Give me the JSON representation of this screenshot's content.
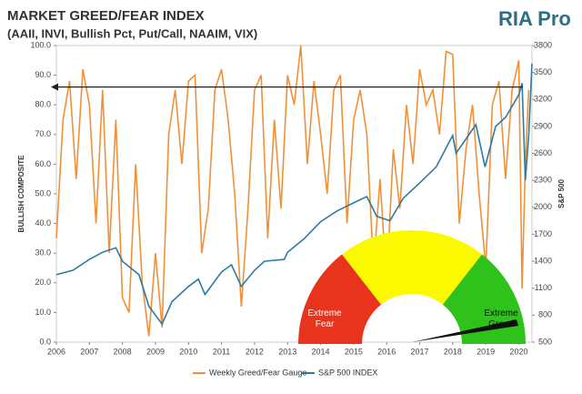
{
  "chart_data": {
    "type": "line",
    "title": "MARKET GREED/FEAR INDEX",
    "subtitle": "(AAII, INVI, Bullish Pct, Put/Call, NAAIM, VIX)",
    "logo": "RIA Pro",
    "y_label": "BULLISH COMPOSITE",
    "y2_label": "S&P 500",
    "xlim": [
      2006,
      2020.4
    ],
    "xticks": [
      2006,
      2007,
      2008,
      2009,
      2010,
      2011,
      2012,
      2013,
      2014,
      2015,
      2016,
      2017,
      2018,
      2019,
      2020
    ],
    "ylim": [
      0,
      100
    ],
    "yticks": [
      {
        "value": 0,
        "label": "0.0"
      },
      {
        "value": 10,
        "label": "10.0"
      },
      {
        "value": 20,
        "label": "20.0"
      },
      {
        "value": 30,
        "label": "30.0"
      },
      {
        "value": 40,
        "label": "40.0"
      },
      {
        "value": 50,
        "label": "50.0"
      },
      {
        "value": 60,
        "label": "60.0"
      },
      {
        "value": 70,
        "label": "70.0"
      },
      {
        "value": 80,
        "label": "80.0"
      },
      {
        "value": 90,
        "label": "90.0"
      },
      {
        "value": 100,
        "label": "100.0"
      }
    ],
    "y2lim": [
      500,
      3800
    ],
    "y2ticks": [
      500,
      800,
      1100,
      1400,
      1700,
      2000,
      2300,
      2600,
      2900,
      3200,
      3500,
      3800
    ],
    "reference_line": 86,
    "series": [
      {
        "name": "Weekly Greed/Fear Gauge",
        "color": "#f0913a",
        "x": [
          2006.0,
          2006.2,
          2006.4,
          2006.6,
          2006.8,
          2007.0,
          2007.2,
          2007.4,
          2007.6,
          2007.8,
          2008.0,
          2008.2,
          2008.4,
          2008.6,
          2008.8,
          2009.0,
          2009.2,
          2009.4,
          2009.6,
          2009.8,
          2010.0,
          2010.2,
          2010.4,
          2010.6,
          2010.8,
          2011.0,
          2011.2,
          2011.4,
          2011.6,
          2011.8,
          2012.0,
          2012.2,
          2012.4,
          2012.6,
          2012.8,
          2013.0,
          2013.2,
          2013.4,
          2013.6,
          2013.8,
          2014.0,
          2014.2,
          2014.4,
          2014.6,
          2014.8,
          2015.0,
          2015.2,
          2015.4,
          2015.6,
          2015.8,
          2016.0,
          2016.2,
          2016.4,
          2016.6,
          2016.8,
          2017.0,
          2017.2,
          2017.4,
          2017.6,
          2017.8,
          2018.0,
          2018.2,
          2018.4,
          2018.6,
          2018.8,
          2019.0,
          2019.2,
          2019.4,
          2019.6,
          2019.8,
          2020.0,
          2020.1,
          2020.2,
          2020.3
        ],
        "values": [
          35,
          75,
          88,
          55,
          92,
          80,
          40,
          85,
          30,
          75,
          15,
          10,
          60,
          20,
          2,
          30,
          5,
          70,
          85,
          60,
          88,
          90,
          30,
          45,
          85,
          92,
          75,
          50,
          12,
          45,
          85,
          90,
          35,
          75,
          45,
          90,
          80,
          100,
          60,
          88,
          70,
          50,
          85,
          90,
          40,
          75,
          85,
          70,
          25,
          55,
          20,
          65,
          45,
          80,
          60,
          92,
          80,
          85,
          70,
          98,
          97,
          40,
          65,
          80,
          50,
          25,
          80,
          88,
          55,
          85,
          95,
          18,
          60,
          85
        ]
      },
      {
        "name": "S&P 500 INDEX",
        "color": "#2b7ca3",
        "axis": "y2",
        "x": [
          2006.0,
          2006.5,
          2007.0,
          2007.4,
          2007.8,
          2008.0,
          2008.5,
          2008.8,
          2009.2,
          2009.5,
          2010.0,
          2010.3,
          2010.5,
          2011.0,
          2011.3,
          2011.6,
          2012.0,
          2012.3,
          2012.9,
          2013.0,
          2013.5,
          2014.0,
          2014.5,
          2015.0,
          2015.4,
          2015.7,
          2016.1,
          2016.5,
          2017.0,
          2017.5,
          2018.0,
          2018.1,
          2018.7,
          2018.98,
          2019.3,
          2019.6,
          2020.0,
          2020.1,
          2020.2,
          2020.3,
          2020.4
        ],
        "values": [
          1250,
          1300,
          1420,
          1500,
          1550,
          1400,
          1250,
          900,
          700,
          950,
          1120,
          1200,
          1030,
          1280,
          1360,
          1120,
          1300,
          1400,
          1420,
          1500,
          1650,
          1840,
          1960,
          2050,
          2120,
          1900,
          1850,
          2100,
          2270,
          2450,
          2800,
          2600,
          2920,
          2450,
          2900,
          3000,
          3250,
          3380,
          2300,
          2800,
          3600
        ]
      }
    ],
    "gauge": {
      "fear_label": "Extreme Fear",
      "greed_label": "Extreme Greed"
    }
  }
}
